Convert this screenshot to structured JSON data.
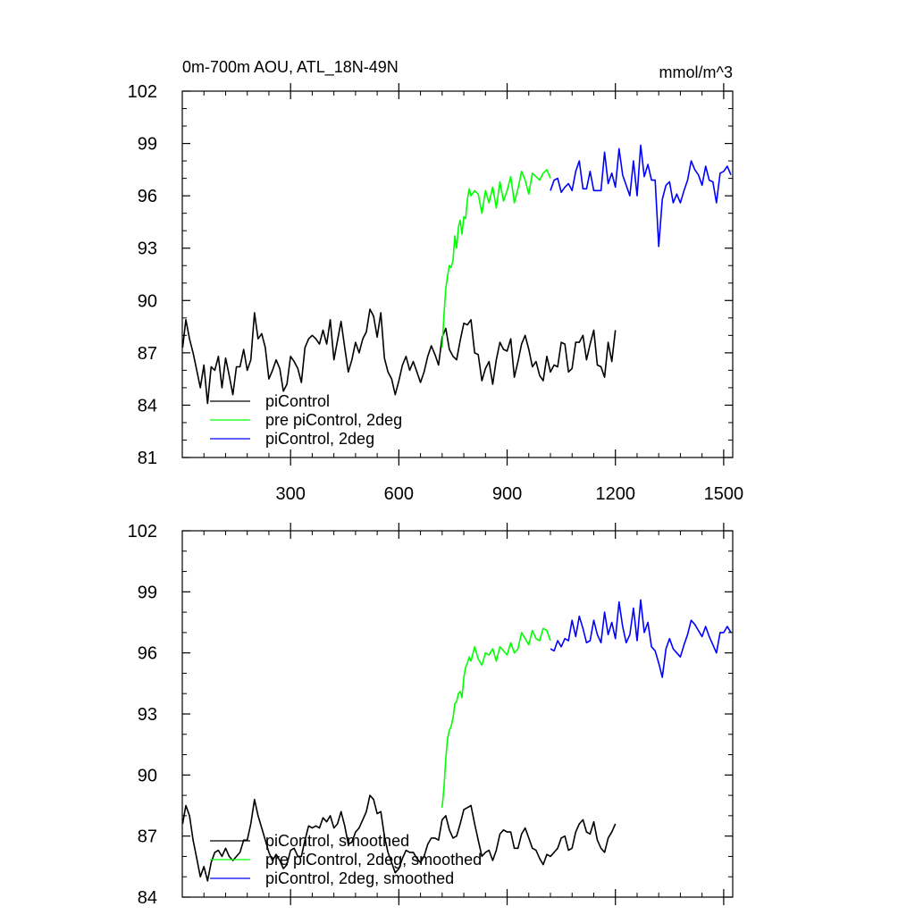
{
  "chart_data": [
    {
      "type": "line",
      "title": "0m-700m AOU, ATL_18N-49N",
      "units": "mmol/m^3",
      "xlim": [
        0,
        1525
      ],
      "ylim": [
        81,
        102
      ],
      "yticks": [
        81,
        84,
        87,
        90,
        93,
        96,
        99,
        102
      ],
      "xticks": [
        300,
        600,
        900,
        1200,
        1500
      ],
      "series": [
        {
          "name": "piControl",
          "color": "#000000",
          "x": [
            1,
            10,
            20,
            30,
            40,
            50,
            60,
            70,
            80,
            90,
            100,
            110,
            120,
            130,
            140,
            150,
            160,
            170,
            180,
            190,
            200,
            210,
            220,
            230,
            240,
            250,
            260,
            270,
            280,
            290,
            300,
            310,
            320,
            330,
            340,
            350,
            360,
            370,
            380,
            390,
            400,
            410,
            420,
            430,
            440,
            450,
            460,
            470,
            480,
            490,
            500,
            510,
            520,
            530,
            540,
            550,
            560,
            570,
            580,
            590,
            600,
            610,
            620,
            630,
            640,
            650,
            660,
            670,
            680,
            690,
            700,
            710,
            720,
            730,
            740,
            750,
            760,
            770,
            780,
            790,
            800,
            810,
            820,
            830,
            840,
            850,
            860,
            870,
            880,
            890,
            900,
            910,
            920,
            930,
            940,
            950,
            960,
            970,
            980,
            990,
            1000,
            1010,
            1020,
            1030,
            1040,
            1050,
            1060,
            1070,
            1080,
            1090,
            1100,
            1110,
            1120,
            1130,
            1140,
            1150,
            1160,
            1170,
            1180,
            1190,
            1200
          ],
          "values": [
            87.3,
            88.9,
            87.8,
            87.0,
            86.0,
            85.0,
            86.3,
            84.1,
            86.2,
            86.0,
            86.8,
            85.0,
            86.7,
            85.7,
            84.6,
            86.2,
            86.2,
            87.2,
            86.0,
            86.6,
            89.3,
            87.8,
            88.1,
            87.3,
            85.5,
            86.0,
            86.6,
            86.1,
            84.8,
            85.2,
            86.8,
            86.5,
            86.1,
            85.3,
            87.3,
            87.8,
            88.0,
            87.8,
            87.5,
            88.3,
            87.5,
            88.9,
            86.6,
            87.7,
            88.8,
            87.3,
            85.9,
            86.6,
            87.6,
            87.0,
            87.8,
            88.2,
            89.5,
            89.1,
            87.9,
            89.3,
            86.7,
            85.9,
            85.5,
            84.6,
            85.4,
            86.3,
            86.8,
            86.0,
            86.5,
            85.9,
            85.3,
            85.9,
            86.8,
            87.4,
            86.9,
            86.3,
            87.9,
            88.4,
            87.2,
            86.8,
            86.6,
            87.7,
            88.7,
            88.6,
            88.9,
            87.0,
            86.9,
            85.4,
            86.1,
            86.5,
            85.2,
            86.6,
            87.6,
            87.2,
            87.1,
            87.8,
            85.6,
            86.5,
            87.5,
            88.0,
            87.2,
            86.2,
            86.5,
            85.7,
            85.4,
            86.8,
            85.9,
            86.3,
            86.2,
            87.6,
            87.5,
            85.9,
            86.1,
            87.6,
            87.6,
            88.0,
            86.6,
            87.5,
            88.3,
            86.3,
            86.2,
            85.6,
            87.6,
            86.5,
            88.3
          ]
        },
        {
          "name": "pre piControl, 2deg",
          "color": "#00ff00",
          "x": [
            720,
            725,
            730,
            735,
            740,
            745,
            750,
            755,
            760,
            765,
            770,
            775,
            780,
            785,
            790,
            795,
            800,
            810,
            820,
            830,
            840,
            850,
            860,
            870,
            880,
            890,
            900,
            910,
            920,
            930,
            940,
            950,
            960,
            970,
            980,
            990,
            1000,
            1010,
            1020
          ],
          "values": [
            87.3,
            89.2,
            90.7,
            91.4,
            92.0,
            91.9,
            92.3,
            93.7,
            93.0,
            94.2,
            94.6,
            93.8,
            94.8,
            94.7,
            95.8,
            96.4,
            96.0,
            96.3,
            96.1,
            95.0,
            96.3,
            95.6,
            96.5,
            95.3,
            96.8,
            95.7,
            96.3,
            97.1,
            95.6,
            96.4,
            97.4,
            96.9,
            96.1,
            97.3,
            97.1,
            96.9,
            97.3,
            97.5,
            97.0
          ]
        },
        {
          "name": "piControl, 2deg",
          "color": "#0000ff",
          "x": [
            1020,
            1030,
            1040,
            1050,
            1060,
            1070,
            1080,
            1090,
            1100,
            1110,
            1120,
            1130,
            1140,
            1150,
            1160,
            1170,
            1180,
            1190,
            1200,
            1210,
            1220,
            1230,
            1240,
            1250,
            1260,
            1270,
            1280,
            1290,
            1300,
            1310,
            1320,
            1330,
            1340,
            1350,
            1360,
            1370,
            1380,
            1390,
            1400,
            1410,
            1420,
            1430,
            1440,
            1450,
            1460,
            1470,
            1480,
            1490,
            1500,
            1510,
            1520
          ],
          "values": [
            96.3,
            96.9,
            97.0,
            96.2,
            96.5,
            96.7,
            96.3,
            97.4,
            98.0,
            96.4,
            96.4,
            97.4,
            96.3,
            96.3,
            96.3,
            98.5,
            96.7,
            97.3,
            96.5,
            98.7,
            97.2,
            96.6,
            96.0,
            98.0,
            96.0,
            98.9,
            97.1,
            97.8,
            96.9,
            96.9,
            93.1,
            95.8,
            96.6,
            96.8,
            95.6,
            96.1,
            95.6,
            96.3,
            96.9,
            98.0,
            97.5,
            97.2,
            96.6,
            97.7,
            96.9,
            96.8,
            95.6,
            97.3,
            97.4,
            97.7,
            97.2
          ]
        }
      ],
      "legend": [
        "piControl",
        "pre piControl, 2deg",
        "piControl, 2deg"
      ]
    },
    {
      "type": "line",
      "title": "",
      "xlim": [
        0,
        1525
      ],
      "ylim": [
        84,
        102
      ],
      "yticks": [
        84,
        87,
        90,
        93,
        96,
        99,
        102
      ],
      "series": [
        {
          "name": "piControl, smoothed",
          "color": "#000000",
          "x": [
            1,
            10,
            20,
            30,
            40,
            50,
            60,
            70,
            80,
            90,
            100,
            110,
            120,
            130,
            140,
            150,
            160,
            170,
            180,
            190,
            200,
            210,
            220,
            230,
            240,
            250,
            260,
            270,
            280,
            290,
            300,
            310,
            320,
            330,
            340,
            350,
            360,
            370,
            380,
            390,
            400,
            410,
            420,
            430,
            440,
            450,
            460,
            470,
            480,
            490,
            500,
            510,
            520,
            530,
            540,
            550,
            560,
            570,
            580,
            590,
            600,
            610,
            620,
            630,
            640,
            650,
            660,
            670,
            680,
            690,
            700,
            710,
            720,
            730,
            740,
            750,
            760,
            770,
            780,
            790,
            800,
            810,
            820,
            830,
            840,
            850,
            860,
            870,
            880,
            890,
            900,
            910,
            920,
            930,
            940,
            950,
            960,
            970,
            980,
            990,
            1000,
            1010,
            1020,
            1030,
            1040,
            1050,
            1060,
            1070,
            1080,
            1090,
            1100,
            1110,
            1120,
            1130,
            1140,
            1150,
            1160,
            1170,
            1180,
            1190,
            1200
          ],
          "values": [
            87.6,
            88.5,
            88.0,
            86.8,
            85.9,
            85.0,
            85.5,
            84.8,
            85.7,
            86.2,
            86.3,
            86.0,
            86.4,
            86.0,
            85.8,
            86.0,
            86.2,
            86.8,
            86.8,
            87.6,
            88.8,
            88.0,
            87.4,
            86.8,
            86.2,
            85.8,
            86.1,
            85.8,
            85.4,
            85.6,
            86.3,
            86.4,
            86.0,
            86.0,
            86.8,
            87.5,
            87.4,
            87.5,
            87.4,
            87.9,
            87.7,
            88.0,
            87.4,
            87.6,
            88.2,
            87.5,
            86.6,
            86.7,
            87.2,
            87.4,
            87.8,
            88.2,
            89.0,
            88.8,
            88.1,
            88.2,
            87.0,
            86.2,
            85.7,
            85.2,
            85.4,
            85.9,
            86.3,
            86.2,
            86.2,
            85.9,
            85.7,
            86.0,
            86.6,
            86.9,
            86.9,
            86.8,
            87.8,
            88.0,
            87.3,
            86.9,
            87.0,
            87.6,
            88.3,
            88.4,
            88.5,
            87.6,
            86.8,
            86.0,
            86.2,
            86.3,
            85.8,
            86.3,
            87.1,
            87.3,
            87.2,
            87.2,
            86.4,
            86.4,
            87.1,
            87.4,
            86.9,
            86.4,
            86.3,
            85.9,
            85.6,
            86.1,
            86.0,
            86.2,
            86.4,
            86.9,
            87.0,
            86.3,
            86.4,
            87.2,
            87.6,
            87.8,
            87.2,
            87.1,
            87.7,
            86.8,
            86.4,
            86.2,
            86.9,
            87.2,
            87.6
          ]
        },
        {
          "name": "pre piControl, 2deg, smoothed",
          "color": "#00ff00",
          "x": [
            720,
            725,
            730,
            735,
            740,
            745,
            750,
            755,
            760,
            765,
            770,
            775,
            780,
            785,
            790,
            795,
            800,
            810,
            820,
            830,
            840,
            850,
            860,
            870,
            880,
            890,
            900,
            910,
            920,
            930,
            940,
            950,
            960,
            970,
            980,
            990,
            1000,
            1010,
            1020
          ],
          "values": [
            88.4,
            89.4,
            90.8,
            91.8,
            92.2,
            92.4,
            92.8,
            93.5,
            93.6,
            94.0,
            94.1,
            93.8,
            94.8,
            95.3,
            95.5,
            95.8,
            95.6,
            96.3,
            95.7,
            95.4,
            96.0,
            95.9,
            96.2,
            95.6,
            96.3,
            96.1,
            95.9,
            96.5,
            96.0,
            96.2,
            97.0,
            96.7,
            96.4,
            97.1,
            96.7,
            96.6,
            97.2,
            97.1,
            96.6
          ]
        },
        {
          "name": "piControl, 2deg, smoothed",
          "color": "#0000ff",
          "x": [
            1020,
            1030,
            1040,
            1050,
            1060,
            1070,
            1080,
            1090,
            1100,
            1110,
            1120,
            1130,
            1140,
            1150,
            1160,
            1170,
            1180,
            1190,
            1200,
            1210,
            1220,
            1230,
            1240,
            1250,
            1260,
            1270,
            1280,
            1290,
            1300,
            1310,
            1320,
            1330,
            1340,
            1350,
            1360,
            1370,
            1380,
            1390,
            1400,
            1410,
            1420,
            1430,
            1440,
            1450,
            1460,
            1470,
            1480,
            1490,
            1500,
            1510,
            1520
          ],
          "values": [
            96.2,
            96.1,
            96.6,
            96.3,
            96.7,
            96.6,
            97.6,
            96.8,
            97.8,
            97.2,
            96.5,
            96.6,
            97.6,
            96.9,
            96.5,
            98.0,
            96.9,
            97.5,
            96.7,
            98.5,
            97.3,
            96.5,
            96.9,
            98.2,
            96.6,
            98.6,
            97.0,
            97.5,
            96.3,
            96.1,
            95.5,
            94.8,
            96.2,
            96.7,
            96.2,
            96.0,
            95.8,
            96.4,
            96.9,
            97.6,
            97.4,
            97.1,
            96.8,
            97.3,
            96.8,
            96.4,
            96.0,
            97.0,
            97.0,
            97.3,
            97.0
          ]
        }
      ],
      "legend": [
        "piControl, smoothed",
        "pre piControl, 2deg, smoothed",
        "piControl, 2deg, smoothed"
      ]
    }
  ]
}
